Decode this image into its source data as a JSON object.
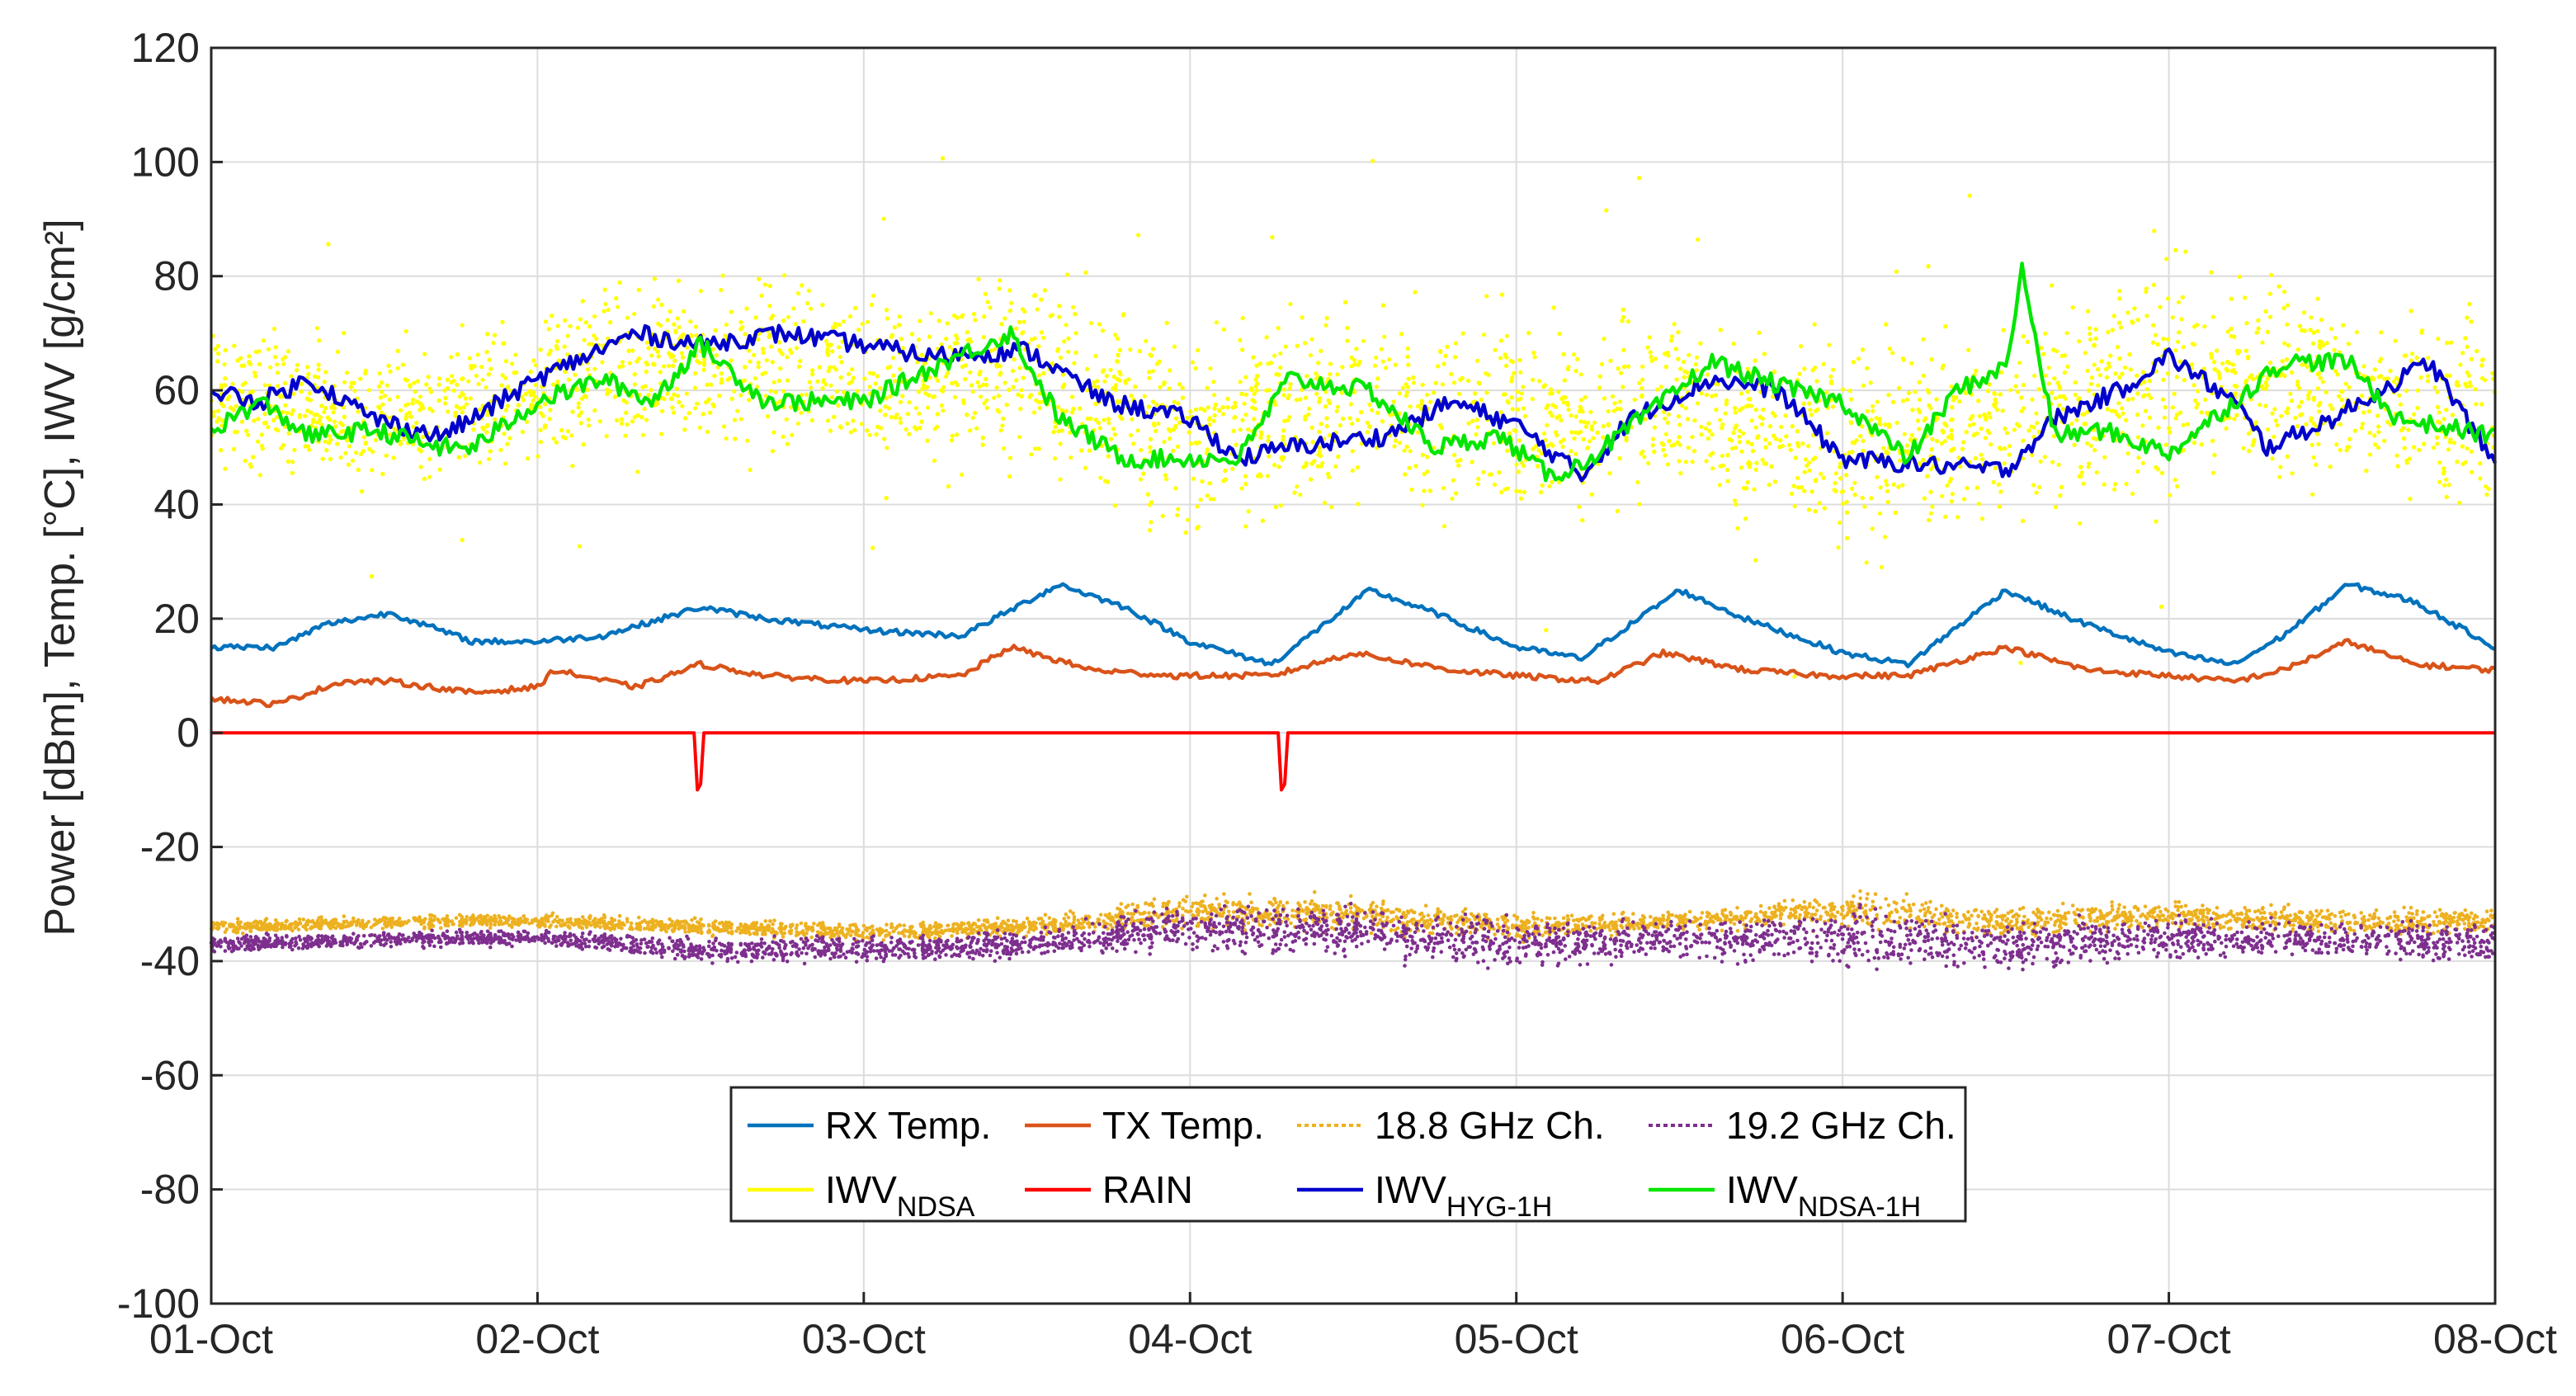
{
  "chart_data": {
    "type": "line",
    "title": "",
    "xlabel": "",
    "ylabel": "Power [dBm], Temp. [°C], IWV [g/cm²]",
    "ylim": [
      -100,
      120
    ],
    "xlim": [
      0,
      7
    ],
    "grid": true,
    "x_tick_labels": [
      "01-Oct",
      "02-Oct",
      "03-Oct",
      "04-Oct",
      "05-Oct",
      "06-Oct",
      "07-Oct",
      "08-Oct"
    ],
    "y_ticks": [
      -100,
      -80,
      -60,
      -40,
      -20,
      0,
      20,
      40,
      60,
      80,
      100,
      120
    ],
    "legend_position": "bottom-center",
    "colors": {
      "rx_temp": "#0072BD",
      "tx_temp": "#D95319",
      "ch188": "#EDB120",
      "ch192": "#7E2F8E",
      "iwv_ndsa": "#FFFF00",
      "rain": "#FF0000",
      "iwv_hyg": "#0000CC",
      "iwv_ndsa_1h": "#00E600"
    },
    "legend": [
      {
        "key": "rx_temp",
        "label": "RX Temp.",
        "sub": ""
      },
      {
        "key": "tx_temp",
        "label": "TX Temp.",
        "sub": ""
      },
      {
        "key": "ch188",
        "label": "18.8 GHz Ch.",
        "sub": ""
      },
      {
        "key": "ch192",
        "label": "19.2 GHz Ch.",
        "sub": ""
      },
      {
        "key": "iwv_ndsa",
        "label": "IWV",
        "sub": "NDSA"
      },
      {
        "key": "rain",
        "label": "RAIN",
        "sub": ""
      },
      {
        "key": "iwv_hyg",
        "label": "IWV",
        "sub": "HYG-1H"
      },
      {
        "key": "iwv_ndsa_1h",
        "label": "IWV",
        "sub": "NDSA-1H"
      }
    ],
    "series": [
      {
        "name": "RX Temp.",
        "key": "rx_temp",
        "style": "line",
        "x": [
          0,
          0.2,
          0.35,
          0.55,
          0.8,
          1.0,
          1.2,
          1.5,
          1.7,
          2.0,
          2.3,
          2.6,
          2.8,
          3.0,
          3.25,
          3.55,
          3.75,
          4.0,
          4.2,
          4.5,
          4.7,
          5.0,
          5.2,
          5.5,
          5.7,
          6.0,
          6.2,
          6.35,
          6.55,
          6.75,
          7.0
        ],
        "values": [
          15,
          15,
          19,
          21,
          16,
          16,
          17,
          22,
          20,
          18,
          17,
          26,
          22,
          16,
          12,
          25,
          21,
          15,
          13,
          25,
          20,
          14,
          12,
          25,
          20,
          14,
          12,
          17,
          26,
          23,
          15
        ]
      },
      {
        "name": "TX Temp.",
        "key": "tx_temp",
        "style": "line",
        "x": [
          0,
          0.2,
          0.4,
          0.55,
          0.8,
          1.0,
          1.05,
          1.3,
          1.5,
          1.7,
          2.0,
          2.3,
          2.45,
          2.7,
          2.95,
          3.25,
          3.5,
          3.8,
          4.0,
          4.25,
          4.45,
          4.7,
          4.95,
          5.2,
          5.5,
          5.75,
          6.0,
          6.2,
          6.35,
          6.55,
          6.75,
          7.0
        ],
        "values": [
          6,
          5,
          9,
          9,
          7,
          8,
          11,
          8,
          12,
          10,
          9,
          10,
          15,
          11,
          10,
          10,
          14,
          11,
          10,
          9,
          14,
          11,
          10,
          10,
          15,
          11,
          10,
          9,
          11,
          16,
          12,
          11
        ]
      },
      {
        "name": "RAIN",
        "key": "rain",
        "style": "line",
        "x": [
          0,
          1.48,
          1.49,
          1.5,
          1.51,
          3.27,
          3.28,
          3.29,
          3.3,
          7.0
        ],
        "values": [
          0,
          0,
          -10,
          -9,
          0,
          0,
          -10,
          -9,
          0,
          0
        ]
      },
      {
        "name": "IWV HYG-1H",
        "key": "iwv_hyg",
        "style": "line",
        "x": [
          0,
          0.15,
          0.3,
          0.5,
          0.7,
          0.8,
          1.0,
          1.3,
          1.5,
          1.75,
          2.0,
          2.2,
          2.5,
          2.75,
          3.0,
          3.15,
          3.3,
          3.6,
          3.8,
          4.0,
          4.2,
          4.35,
          4.6,
          4.8,
          5.0,
          5.25,
          5.5,
          5.65,
          5.85,
          6.0,
          6.2,
          6.3,
          6.5,
          6.8,
          7.0
        ],
        "values": [
          60,
          58,
          62,
          55,
          52,
          55,
          62,
          70,
          68,
          70,
          68,
          66,
          67,
          58,
          55,
          48,
          50,
          52,
          58,
          54,
          45,
          55,
          62,
          60,
          48,
          47,
          46,
          55,
          60,
          66,
          58,
          50,
          55,
          65,
          47
        ]
      },
      {
        "name": "IWV NDSA-1H",
        "key": "iwv_ndsa_1h",
        "style": "line",
        "x": [
          0,
          0.15,
          0.3,
          0.5,
          0.7,
          0.8,
          1.0,
          1.2,
          1.35,
          1.5,
          1.7,
          2.0,
          2.25,
          2.45,
          2.6,
          2.8,
          3.0,
          3.15,
          3.3,
          3.55,
          3.75,
          3.95,
          4.1,
          4.2,
          4.45,
          4.6,
          4.7,
          4.85,
          5.0,
          5.2,
          5.35,
          5.5,
          5.55,
          5.65,
          5.8,
          6.0,
          6.2,
          6.35,
          6.55,
          6.7,
          7.0
        ],
        "values": [
          53,
          58,
          52,
          53,
          50,
          50,
          58,
          62,
          58,
          68,
          58,
          58,
          65,
          70,
          55,
          48,
          48,
          48,
          62,
          60,
          50,
          52,
          45,
          47,
          58,
          65,
          63,
          60,
          58,
          48,
          60,
          64,
          81,
          52,
          53,
          49,
          58,
          65,
          65,
          55,
          52
        ]
      },
      {
        "name": "18.8 GHz Ch.",
        "key": "ch188",
        "style": "band",
        "x": [
          0,
          0.8,
          1.0,
          1.5,
          2.0,
          2.5,
          3.0,
          3.5,
          4.0,
          4.5,
          5.0,
          5.5,
          6.0,
          6.5,
          7.0
        ],
        "values": [
          -34,
          -33,
          -33,
          -34,
          -35,
          -34,
          -31,
          -32,
          -34,
          -33,
          -31,
          -33,
          -32,
          -33,
          -33
        ],
        "spread": [
          1.5,
          1.5,
          1.5,
          2,
          2,
          2,
          4,
          4,
          3,
          2,
          4,
          4,
          3,
          3,
          3
        ]
      },
      {
        "name": "19.2 GHz Ch.",
        "key": "ch192",
        "style": "band",
        "x": [
          0,
          0.8,
          1.0,
          1.5,
          2.0,
          2.5,
          3.0,
          3.5,
          4.0,
          4.5,
          5.0,
          5.5,
          6.0,
          6.5,
          7.0
        ],
        "values": [
          -37,
          -36,
          -36,
          -38,
          -38,
          -37,
          -34,
          -35,
          -37,
          -36,
          -36,
          -37,
          -36,
          -36,
          -37
        ],
        "spread": [
          2,
          2,
          2,
          3,
          3,
          3,
          5,
          6,
          6,
          4,
          7,
          6,
          5,
          4,
          5
        ]
      },
      {
        "name": "IWV NDSA",
        "key": "iwv_ndsa",
        "style": "scatter",
        "x": [
          0,
          0.5,
          1.0,
          1.5,
          2.0,
          2.5,
          3.0,
          3.5,
          4.0,
          4.5,
          5.0,
          5.5,
          6.0,
          6.5,
          7.0
        ],
        "values": [
          58,
          55,
          60,
          66,
          62,
          64,
          52,
          58,
          55,
          58,
          50,
          55,
          62,
          60,
          55
        ],
        "spread": [
          14,
          12,
          14,
          16,
          14,
          18,
          18,
          18,
          18,
          16,
          18,
          18,
          22,
          16,
          16
        ]
      }
    ]
  }
}
